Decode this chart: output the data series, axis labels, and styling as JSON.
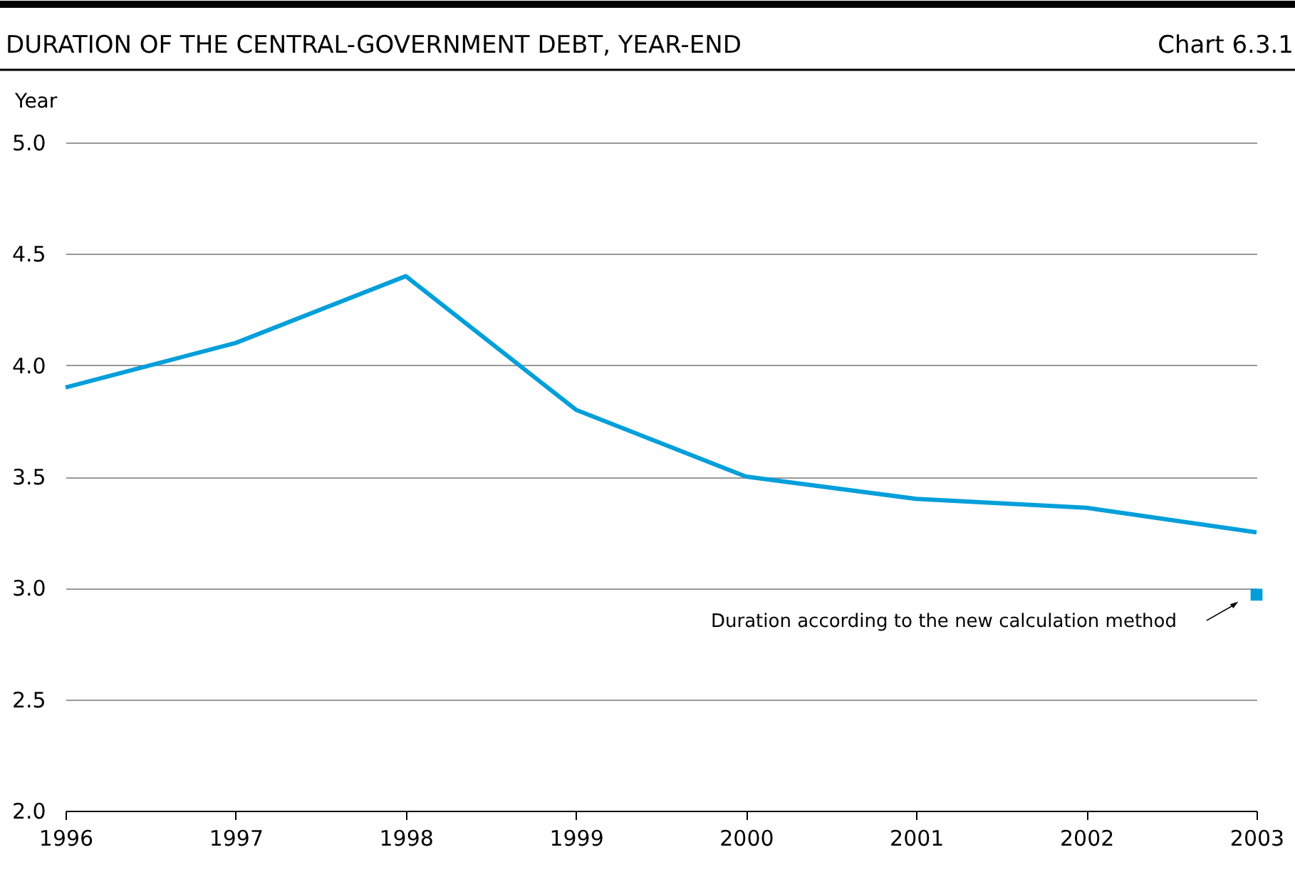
{
  "chart_data": {
    "type": "line",
    "title": "DURATION OF THE CENTRAL-GOVERNMENT DEBT, YEAR-END",
    "ylabel": "Year",
    "x": [
      1996,
      1997,
      1998,
      1999,
      2000,
      2001,
      2002,
      2003
    ],
    "series": [
      {
        "color": "#009fda",
        "values": [
          3.9,
          4.1,
          4.4,
          3.8,
          3.5,
          3.4,
          3.36,
          3.25
        ]
      },
      {
        "type": "scatter",
        "marker": "square",
        "color": "#009fda",
        "x": [
          2003
        ],
        "values": [
          2.97
        ]
      }
    ],
    "xlim": [
      1996,
      2003
    ],
    "xticks": [
      1996,
      1997,
      1998,
      1999,
      2000,
      2001,
      2002,
      2003
    ],
    "ylim": [
      2,
      5
    ],
    "yticks": [
      {
        "value": 2,
        "label": "2.0"
      },
      {
        "value": 2.5,
        "label": "2.5"
      },
      {
        "value": 3,
        "label": "3.0"
      },
      {
        "value": 3.5,
        "label": "3.5"
      },
      {
        "value": 4,
        "label": "4.0"
      },
      {
        "value": 4.5,
        "label": "4.5"
      },
      {
        "value": 5,
        "label": "5.0"
      }
    ],
    "grid": "y",
    "line_style": "solid",
    "marker": "none",
    "annotations": [
      "Chart 6.3.1",
      "Duration according to the new calculation method"
    ]
  }
}
